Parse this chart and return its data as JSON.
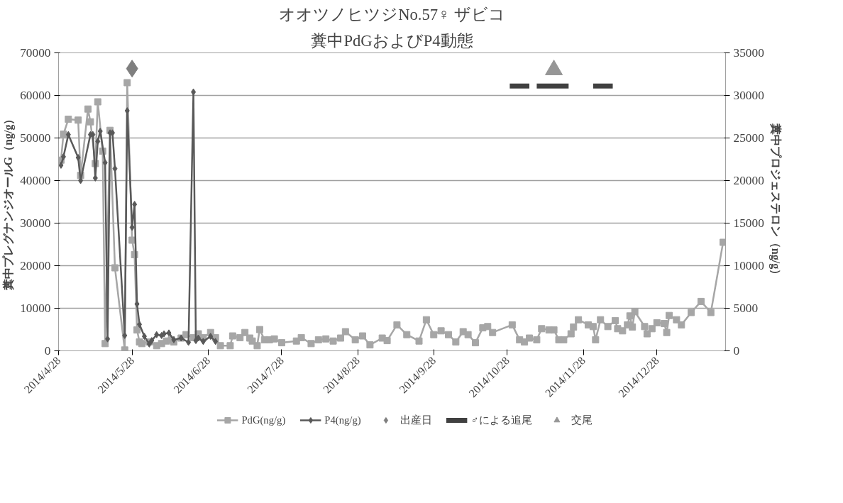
{
  "chart_data": {
    "type": "line",
    "title": "オオツノヒツジNo.57♀ ザビコ",
    "subtitle": "糞中PdGおよびP4動態",
    "ylabel": "糞中プレグナンジオールG（ng/g）",
    "y2label": "糞中プロジェステロン（ng/g）",
    "xlim": [
      "2014-04-28",
      "2015-01-25"
    ],
    "xticks": [
      {
        "value": "2014-04-28",
        "label": "2014/4/28"
      },
      {
        "value": "2014-05-28",
        "label": "2014/5/28"
      },
      {
        "value": "2014-06-28",
        "label": "2014/6/28"
      },
      {
        "value": "2014-07-28",
        "label": "2014/7/28"
      },
      {
        "value": "2014-08-28",
        "label": "2014/8/28"
      },
      {
        "value": "2014-09-28",
        "label": "2014/9/28"
      },
      {
        "value": "2014-10-28",
        "label": "2014/10/28"
      },
      {
        "value": "2014-11-28",
        "label": "2014/11/28"
      },
      {
        "value": "2014-12-28",
        "label": "2014/12/28"
      }
    ],
    "ylim": [
      0,
      70000
    ],
    "yticks": [
      0,
      10000,
      20000,
      30000,
      40000,
      50000,
      60000,
      70000
    ],
    "y2lim": [
      0,
      35000
    ],
    "y2ticks": [
      0,
      5000,
      10000,
      15000,
      20000,
      25000,
      30000,
      35000
    ],
    "grid": "y",
    "legend": "bottom",
    "series": [
      {
        "name": "PdG(ng/g)",
        "marker": "square",
        "color": "#a6a6a6",
        "x": [
          "2014-04-29",
          "2014-04-30",
          "2014-05-02",
          "2014-05-06",
          "2014-05-07",
          "2014-05-10",
          "2014-05-11",
          "2014-05-13",
          "2014-05-14",
          "2014-05-16",
          "2014-05-17",
          "2014-05-19",
          "2014-05-21",
          "2014-05-25",
          "2014-05-26",
          "2014-05-28",
          "2014-05-29",
          "2014-05-30",
          "2014-05-31",
          "2014-06-01",
          "2014-06-04",
          "2014-06-07",
          "2014-06-09",
          "2014-06-11",
          "2014-06-13",
          "2014-06-14",
          "2014-06-17",
          "2014-06-19",
          "2014-06-22",
          "2014-06-24",
          "2014-06-26",
          "2014-06-29",
          "2014-07-01",
          "2014-07-03",
          "2014-07-07",
          "2014-07-08",
          "2014-07-11",
          "2014-07-13",
          "2014-07-15",
          "2014-07-16",
          "2014-07-18",
          "2014-07-19",
          "2014-07-21",
          "2014-07-23",
          "2014-07-25",
          "2014-07-28",
          "2014-08-03",
          "2014-08-05",
          "2014-08-09",
          "2014-08-12",
          "2014-08-15",
          "2014-08-18",
          "2014-08-21",
          "2014-08-23",
          "2014-08-27",
          "2014-08-30",
          "2014-09-02",
          "2014-09-07",
          "2014-09-09",
          "2014-09-13",
          "2014-09-17",
          "2014-09-22",
          "2014-09-25",
          "2014-09-28",
          "2014-10-01",
          "2014-10-04",
          "2014-10-07",
          "2014-10-10",
          "2014-10-12",
          "2014-10-15",
          "2014-10-18",
          "2014-10-20",
          "2014-10-22",
          "2014-10-30",
          "2014-11-02",
          "2014-11-04",
          "2014-11-06",
          "2014-11-09",
          "2014-11-11",
          "2014-11-14",
          "2014-11-16",
          "2014-11-18",
          "2014-11-20",
          "2014-11-23",
          "2014-11-24",
          "2014-11-26",
          "2014-11-30",
          "2014-12-02",
          "2014-12-03",
          "2014-12-05",
          "2014-12-08",
          "2014-12-11",
          "2014-12-12",
          "2014-12-14",
          "2014-12-16",
          "2014-12-17",
          "2014-12-18",
          "2014-12-19",
          "2014-12-23",
          "2014-12-24",
          "2014-12-26",
          "2014-12-28",
          "2014-12-31",
          "2015-01-01",
          "2015-01-02",
          "2015-01-05",
          "2015-01-07",
          "2015-01-11",
          "2015-01-15",
          "2015-01-19",
          "2015-01-24"
        ],
        "values": [
          44800,
          50900,
          54400,
          54200,
          41200,
          56800,
          53800,
          44000,
          58500,
          46900,
          1700,
          51800,
          19500,
          200,
          63000,
          26000,
          22600,
          4900,
          2100,
          1700,
          2100,
          1200,
          1700,
          2300,
          2600,
          2100,
          3000,
          3800,
          3100,
          4000,
          3100,
          4300,
          3100,
          1200,
          1200,
          3500,
          3100,
          4300,
          3000,
          2300,
          1200,
          5000,
          2600,
          2600,
          2800,
          1900,
          2300,
          3100,
          1700,
          2600,
          2800,
          2300,
          3000,
          4500,
          2600,
          3500,
          1400,
          3000,
          2400,
          6100,
          3800,
          2300,
          7300,
          3800,
          4700,
          3800,
          2100,
          4500,
          3800,
          1900,
          5400,
          5700,
          4300,
          6100,
          2600,
          2100,
          3000,
          2600,
          5200,
          4900,
          4900,
          2600,
          2600,
          4000,
          5600,
          7300,
          6100,
          5700,
          2600,
          7300,
          5700,
          7100,
          5200,
          4700,
          6100,
          8200,
          5600,
          9200,
          5700,
          4000,
          5200,
          6600,
          6400,
          4300,
          8300,
          7300,
          6100,
          9000,
          11600,
          9000,
          25500
        ]
      },
      {
        "name": "P4(ng/g)",
        "marker": "diamond",
        "axis": "y2",
        "color": "#595959",
        "x": [
          "2014-04-29",
          "2014-04-30",
          "2014-05-02",
          "2014-05-06",
          "2014-05-07",
          "2014-05-11",
          "2014-05-12",
          "2014-05-13",
          "2014-05-14",
          "2014-05-15",
          "2014-05-17",
          "2014-05-18",
          "2014-05-19",
          "2014-05-20",
          "2014-05-21",
          "2014-05-25",
          "2014-05-26",
          "2014-05-28",
          "2014-05-29",
          "2014-05-30",
          "2014-05-31",
          "2014-06-02",
          "2014-06-04",
          "2014-06-05",
          "2014-06-07",
          "2014-06-09",
          "2014-06-10",
          "2014-06-12",
          "2014-06-14",
          "2014-06-17",
          "2014-06-20",
          "2014-06-22",
          "2014-06-23",
          "2014-06-24",
          "2014-06-26",
          "2014-06-29",
          "2014-07-01"
        ],
        "values": [
          21800,
          22800,
          25400,
          22700,
          20000,
          25400,
          25400,
          20300,
          24600,
          25800,
          22100,
          1400,
          25600,
          25600,
          21400,
          1800,
          28200,
          14500,
          17200,
          5500,
          3100,
          1700,
          800,
          1200,
          1900,
          1800,
          2000,
          2100,
          1300,
          1500,
          1000,
          30400,
          1200,
          1500,
          1100,
          1700,
          1100
        ]
      },
      {
        "name": "出産日",
        "type": "scatter",
        "marker": "diamond",
        "color": "#7f7f7f",
        "x": [
          "2014-05-28"
        ],
        "values": [
          66300
        ]
      },
      {
        "name": "♂による追尾",
        "marker": "none",
        "color": "#404040",
        "x": [
          "2014-10-29",
          "2014-11-06",
          "2014-11-07",
          "2014-11-09",
          "2014-11-22",
          "2014-11-23",
          "2014-12-02",
          "2014-12-10"
        ],
        "values": [
          62200,
          62200,
          null,
          62200,
          62200,
          null,
          62200,
          62200
        ]
      },
      {
        "name": "交尾",
        "type": "scatter",
        "marker": "triangle",
        "color": "#969696",
        "x": [
          "2014-11-16"
        ],
        "values": [
          66000
        ]
      }
    ]
  }
}
